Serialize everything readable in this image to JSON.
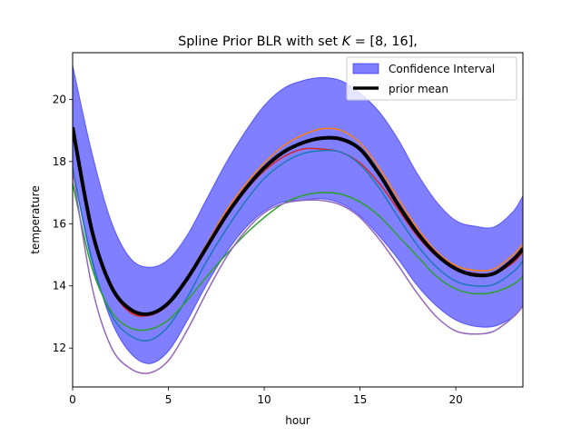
{
  "chart_data": {
    "type": "line",
    "title": "Spline Prior BLR with set K = [8, 16],",
    "title_parts": [
      "Spline Prior BLR with set ",
      "K",
      " = [8, 16],"
    ],
    "xlabel": "hour",
    "ylabel": "temperature",
    "xlim": [
      0,
      23.5
    ],
    "ylim": [
      10.75,
      21.5
    ],
    "xticks": [
      0,
      5,
      10,
      15,
      20
    ],
    "yticks": [
      12,
      14,
      16,
      18,
      20
    ],
    "grid": false,
    "legend_position": "top-right",
    "legend": [
      "Confidence Interval",
      "prior mean"
    ],
    "confidence_interval": {
      "name": "Confidence Interval",
      "color": "#0000ff",
      "x": [
        0,
        1,
        2,
        3,
        4,
        5,
        6,
        7,
        8,
        9,
        10,
        11,
        12,
        13,
        14,
        15,
        16,
        17,
        18,
        19,
        20,
        21,
        22,
        23,
        23.5
      ],
      "upper": [
        21.1,
        18.3,
        16.1,
        14.9,
        14.6,
        14.85,
        15.65,
        16.8,
        17.95,
        18.95,
        19.8,
        20.35,
        20.6,
        20.7,
        20.6,
        20.2,
        19.6,
        18.7,
        17.6,
        16.7,
        16.1,
        15.92,
        15.9,
        16.4,
        16.9
      ],
      "lower": [
        17.7,
        14.9,
        12.9,
        11.85,
        11.5,
        11.9,
        12.9,
        14.05,
        15.05,
        15.85,
        16.4,
        16.7,
        16.75,
        16.8,
        16.65,
        16.25,
        15.6,
        14.85,
        14.0,
        13.35,
        12.9,
        12.7,
        12.7,
        13.0,
        13.35
      ]
    },
    "prior_mean": {
      "name": "prior mean",
      "color": "#000000",
      "x": [
        0,
        1,
        2,
        3,
        4,
        5,
        6,
        7,
        8,
        9,
        10,
        11,
        12,
        13,
        14,
        15,
        16,
        17,
        18,
        19,
        20,
        21,
        22,
        23,
        23.5
      ],
      "values": [
        19.1,
        15.8,
        14.0,
        13.25,
        13.1,
        13.45,
        14.25,
        15.25,
        16.25,
        17.1,
        17.8,
        18.3,
        18.6,
        18.75,
        18.72,
        18.4,
        17.6,
        16.6,
        15.7,
        15.0,
        14.55,
        14.35,
        14.4,
        14.85,
        15.2
      ]
    },
    "samples": [
      {
        "color": "#ff7f0e",
        "x": [
          0,
          1,
          2,
          3,
          4,
          5,
          6,
          7,
          8,
          9,
          10,
          11,
          12,
          13,
          14,
          15,
          16,
          17,
          18,
          19,
          20,
          21,
          22,
          23,
          23.5
        ],
        "values": [
          19.0,
          15.7,
          13.95,
          13.2,
          13.05,
          13.45,
          14.3,
          15.35,
          16.4,
          17.25,
          17.95,
          18.5,
          18.85,
          19.05,
          19.0,
          18.6,
          17.8,
          16.8,
          15.85,
          15.1,
          14.65,
          14.5,
          14.55,
          15.0,
          15.35
        ]
      },
      {
        "color": "#d62728",
        "x": [
          0,
          1,
          2,
          3,
          4,
          5,
          6,
          7,
          8,
          9,
          10,
          11,
          12,
          13,
          14,
          15,
          16,
          17,
          18,
          19,
          20,
          21,
          22,
          23,
          23.5
        ],
        "values": [
          19.0,
          15.7,
          13.95,
          13.15,
          13.05,
          13.4,
          14.25,
          15.25,
          16.25,
          17.05,
          17.7,
          18.15,
          18.4,
          18.4,
          18.3,
          17.95,
          17.3,
          16.45,
          15.6,
          14.95,
          14.55,
          14.4,
          14.4,
          14.75,
          15.1
        ]
      },
      {
        "color": "#1f77b4",
        "x": [
          0,
          1,
          2,
          3,
          4,
          5,
          6,
          7,
          8,
          9,
          10,
          11,
          12,
          13,
          14,
          15,
          16,
          17,
          18,
          19,
          20,
          21,
          22,
          23,
          23.5
        ],
        "values": [
          17.8,
          14.8,
          13.1,
          12.4,
          12.25,
          12.7,
          13.65,
          14.8,
          15.8,
          16.7,
          17.45,
          17.95,
          18.25,
          18.35,
          18.3,
          17.9,
          17.15,
          16.2,
          15.3,
          14.6,
          14.15,
          14.0,
          14.05,
          14.45,
          14.8
        ]
      },
      {
        "color": "#2ca02c",
        "x": [
          0,
          1,
          2,
          3,
          4,
          5,
          6,
          7,
          8,
          9,
          10,
          11,
          12,
          13,
          14,
          15,
          16,
          17,
          18,
          19,
          20,
          21,
          22,
          23,
          23.5
        ],
        "values": [
          17.3,
          14.6,
          13.2,
          12.65,
          12.6,
          12.9,
          13.55,
          14.3,
          15.0,
          15.65,
          16.2,
          16.65,
          16.9,
          17.0,
          16.95,
          16.7,
          16.25,
          15.6,
          14.95,
          14.3,
          13.9,
          13.75,
          13.8,
          14.05,
          14.3
        ]
      },
      {
        "color": "#9467bd",
        "x": [
          0,
          1,
          2,
          3,
          4,
          5,
          6,
          7,
          8,
          9,
          10,
          11,
          12,
          13,
          14,
          15,
          16,
          17,
          18,
          19,
          20,
          21,
          22,
          23,
          23.5
        ],
        "values": [
          17.7,
          14.0,
          12.05,
          11.35,
          11.2,
          11.6,
          12.6,
          13.8,
          14.9,
          15.75,
          16.35,
          16.65,
          16.75,
          16.75,
          16.6,
          16.2,
          15.5,
          14.65,
          13.75,
          13.0,
          12.55,
          12.45,
          12.55,
          13.0,
          13.35
        ]
      }
    ]
  }
}
